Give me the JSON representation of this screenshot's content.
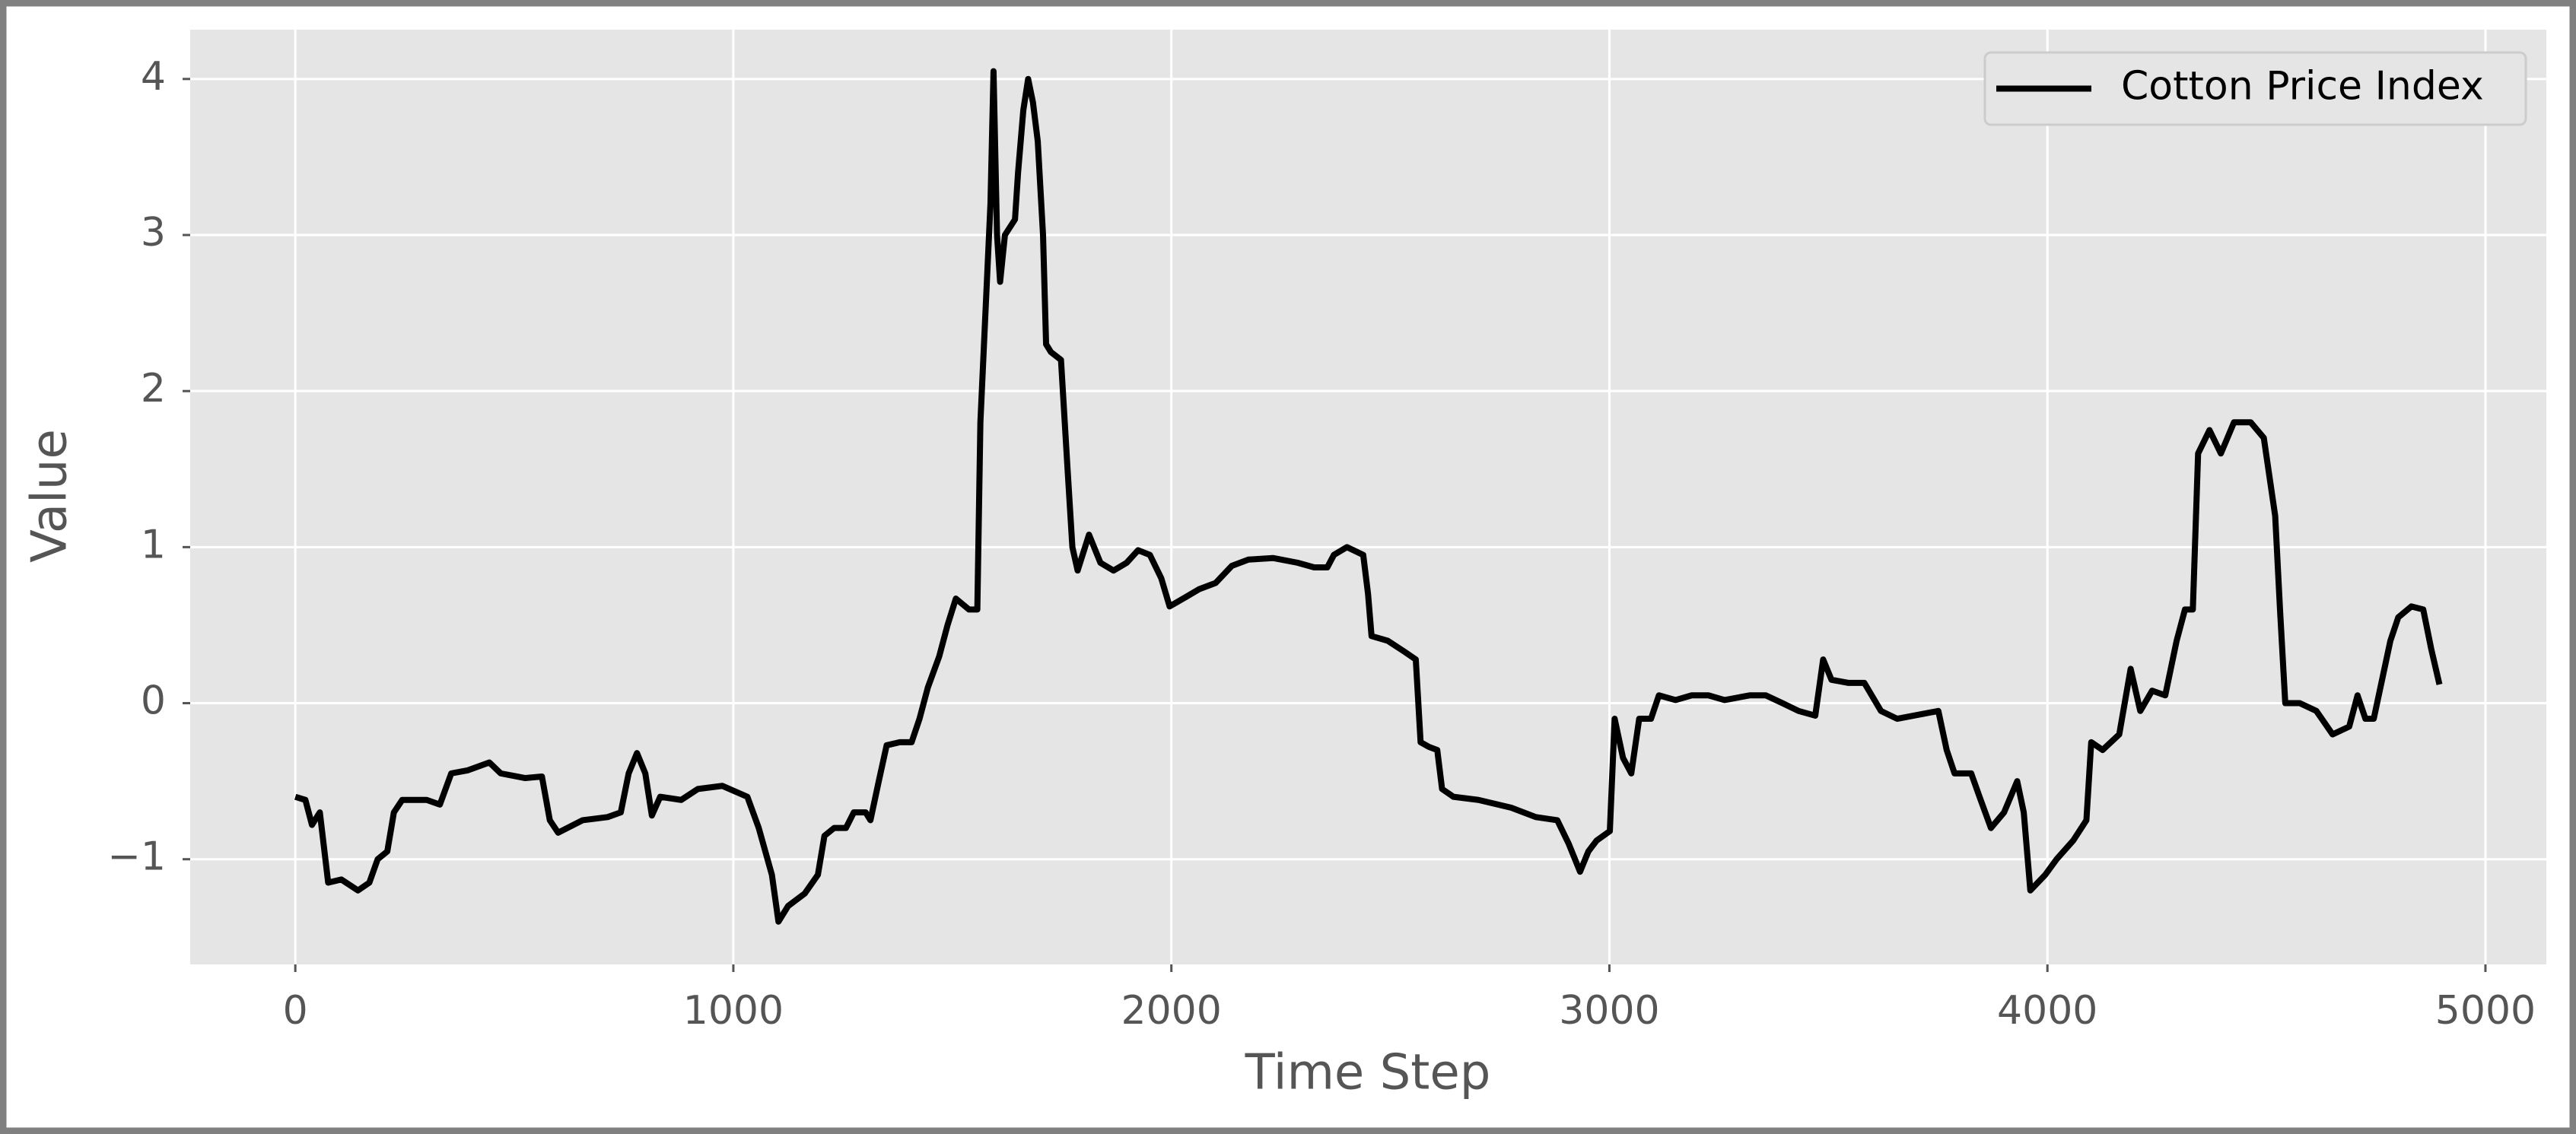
{
  "chart_data": {
    "type": "line",
    "x_label": "Time Step",
    "y_label": "Value",
    "xlim": [
      -240,
      5139
    ],
    "ylim": [
      -1.674,
      4.316
    ],
    "xticks": [
      0,
      1000,
      2000,
      3000,
      4000,
      5000
    ],
    "yticks": [
      {
        "value": -1,
        "label": "−1"
      },
      0,
      1,
      2,
      3,
      4
    ],
    "grid": true,
    "legend_position": "upper-right",
    "x": [
      0,
      23,
      38,
      56,
      75,
      105,
      143,
      169,
      188,
      210,
      225,
      244,
      300,
      330,
      356,
      394,
      443,
      469,
      525,
      563,
      581,
      600,
      656,
      713,
      743,
      761,
      780,
      799,
      814,
      833,
      881,
      919,
      975,
      1032,
      1058,
      1088,
      1103,
      1125,
      1163,
      1193,
      1208,
      1230,
      1257,
      1275,
      1302,
      1313,
      1332,
      1350,
      1380,
      1407,
      1425,
      1444,
      1470,
      1489,
      1508,
      1538,
      1557,
      1564,
      1587,
      1594,
      1602,
      1609,
      1620,
      1643,
      1650,
      1662,
      1673,
      1684,
      1695,
      1707,
      1714,
      1725,
      1748,
      1763,
      1774,
      1786,
      1812,
      1838,
      1868,
      1898,
      1924,
      1951,
      1977,
      1996,
      2033,
      2063,
      2101,
      2138,
      2176,
      2232,
      2288,
      2326,
      2356,
      2371,
      2401,
      2438,
      2449,
      2457,
      2494,
      2532,
      2558,
      2569,
      2588,
      2607,
      2618,
      2644,
      2701,
      2776,
      2832,
      2881,
      2907,
      2933,
      2952,
      2971,
      3001,
      3012,
      3031,
      3050,
      3068,
      3095,
      3113,
      3151,
      3188,
      3226,
      3263,
      3320,
      3357,
      3395,
      3432,
      3470,
      3488,
      3507,
      3545,
      3582,
      3620,
      3657,
      3713,
      3751,
      3770,
      3788,
      3826,
      3845,
      3871,
      3901,
      3931,
      3946,
      3961,
      3995,
      4021,
      4059,
      4089,
      4100,
      4126,
      4164,
      4190,
      4212,
      4239,
      4269,
      4295,
      4314,
      4332,
      4344,
      4370,
      4396,
      4426,
      4464,
      4494,
      4520,
      4531,
      4543,
      4576,
      4614,
      4651,
      4689,
      4708,
      4726,
      4745,
      4764,
      4783,
      4801,
      4831,
      4858,
      4876,
      4895
    ],
    "series": [
      {
        "name": "Cotton Price Index",
        "color": "#000000",
        "values": [
          -0.6,
          -0.62,
          -0.78,
          -0.7,
          -1.15,
          -1.13,
          -1.2,
          -1.15,
          -1.0,
          -0.95,
          -0.7,
          -0.62,
          -0.62,
          -0.65,
          -0.45,
          -0.43,
          -0.38,
          -0.45,
          -0.48,
          -0.47,
          -0.75,
          -0.83,
          -0.75,
          -0.73,
          -0.7,
          -0.45,
          -0.32,
          -0.45,
          -0.72,
          -0.6,
          -0.62,
          -0.55,
          -0.53,
          -0.6,
          -0.8,
          -1.1,
          -1.4,
          -1.3,
          -1.22,
          -1.1,
          -0.85,
          -0.8,
          -0.8,
          -0.7,
          -0.7,
          -0.75,
          -0.5,
          -0.27,
          -0.25,
          -0.25,
          -0.1,
          0.1,
          0.3,
          0.5,
          0.67,
          0.6,
          0.6,
          1.8,
          3.2,
          4.05,
          3.0,
          2.7,
          3.0,
          3.1,
          3.4,
          3.8,
          4.0,
          3.85,
          3.6,
          3.0,
          2.3,
          2.25,
          2.2,
          1.5,
          1.0,
          0.85,
          1.08,
          0.9,
          0.85,
          0.9,
          0.98,
          0.95,
          0.8,
          0.62,
          0.68,
          0.73,
          0.77,
          0.88,
          0.92,
          0.93,
          0.9,
          0.87,
          0.87,
          0.95,
          1.0,
          0.95,
          0.7,
          0.43,
          0.4,
          0.33,
          0.28,
          -0.25,
          -0.28,
          -0.3,
          -0.55,
          -0.6,
          -0.62,
          -0.67,
          -0.73,
          -0.75,
          -0.9,
          -1.08,
          -0.95,
          -0.88,
          -0.82,
          -0.1,
          -0.35,
          -0.45,
          -0.1,
          -0.1,
          0.05,
          0.02,
          0.05,
          0.05,
          0.02,
          0.05,
          0.05,
          0.0,
          -0.05,
          -0.08,
          0.28,
          0.15,
          0.13,
          0.13,
          -0.05,
          -0.1,
          -0.07,
          -0.05,
          -0.3,
          -0.45,
          -0.45,
          -0.6,
          -0.8,
          -0.7,
          -0.5,
          -0.7,
          -1.2,
          -1.1,
          -1.0,
          -0.88,
          -0.75,
          -0.25,
          -0.3,
          -0.2,
          0.22,
          -0.05,
          0.08,
          0.05,
          0.4,
          0.6,
          0.6,
          1.6,
          1.75,
          1.6,
          1.8,
          1.8,
          1.7,
          1.2,
          0.6,
          0.0,
          0.0,
          -0.05,
          -0.2,
          -0.15,
          0.05,
          -0.1,
          -0.1,
          0.15,
          0.4,
          0.55,
          0.62,
          0.6,
          0.35,
          0.12
        ]
      }
    ]
  }
}
